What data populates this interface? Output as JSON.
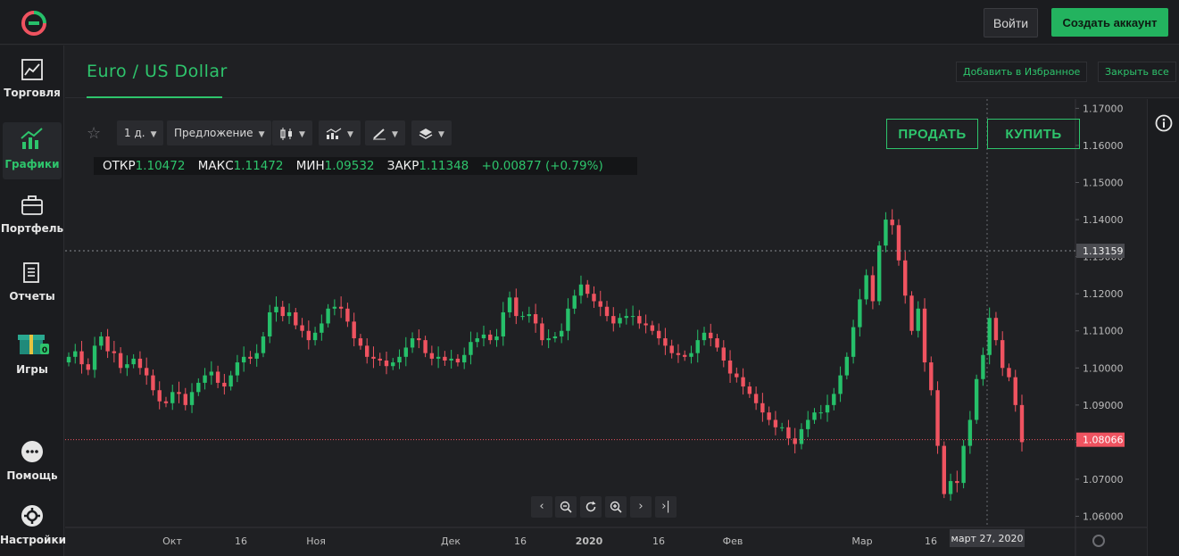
{
  "topbar": {
    "logo_icon": "brand-logo-icon",
    "login_label": "Войти",
    "signup_label": "Создать аккаунт"
  },
  "sidebar": {
    "items": [
      {
        "label": "Торговля",
        "icon": "chart-line-icon"
      },
      {
        "label": "Графики",
        "icon": "chart-bars-icon",
        "active": true
      },
      {
        "label": "Портфель",
        "icon": "briefcase-icon"
      },
      {
        "label": "Отчеты",
        "icon": "document-icon"
      },
      {
        "label": "Игры",
        "icon": "gift-icon"
      },
      {
        "label": "Помощь",
        "icon": "chat-icon"
      },
      {
        "label": "Настройки",
        "icon": "gear-icon"
      }
    ]
  },
  "header": {
    "asset_title": "Euro / US Dollar",
    "add_favorite_label": "Добавить в Избранное",
    "close_all_label": "Закрыть все"
  },
  "toolbar": {
    "interval_label": "1 д.",
    "price_type_label": "Предложение",
    "sell_label": "ПРОДАТЬ",
    "buy_label": "КУПИТЬ"
  },
  "ohlc": {
    "open_label": "ОТКР",
    "open_value": "1.10472",
    "high_label": "МАКС",
    "high_value": "1.11472",
    "low_label": "МИН",
    "low_value": "1.09532",
    "close_label": "ЗАКР",
    "close_value": "1.11348",
    "change": "+0.00877 (+0.79%)"
  },
  "colors": {
    "up": "#26c06a",
    "down": "#ef5360",
    "accent": "#2ec46c",
    "background": "#1f2023"
  },
  "chart_data": {
    "type": "candlestick",
    "symbol": "EUR/USD",
    "interval": "1 d",
    "ylim": [
      1.057,
      1.1725
    ],
    "y_ticks": [
      "1.17000",
      "1.16000",
      "1.15000",
      "1.14000",
      "1.13000",
      "1.12000",
      "1.11000",
      "1.10000",
      "1.09000",
      "1.08000",
      "1.07000",
      "1.06000"
    ],
    "x_ticks": [
      "Окт",
      "16",
      "Ноя",
      "Дек",
      "16",
      "2020",
      "16",
      "Фев",
      "Мар",
      "16"
    ],
    "crosshair_price": "1.13159",
    "current_price": "1.08066",
    "crosshair_date": "март 27, 2020",
    "closes": [
      1.103,
      1.1045,
      1.101,
      1.0995,
      1.106,
      1.1085,
      1.1045,
      1.104,
      1.1,
      1.101,
      1.1025,
      1.1,
      1.098,
      1.094,
      1.091,
      1.0905,
      1.0935,
      1.093,
      1.09,
      1.0935,
      1.096,
      1.098,
      1.099,
      1.096,
      1.095,
      1.098,
      1.1015,
      1.103,
      1.1025,
      1.104,
      1.1085,
      1.115,
      1.1165,
      1.114,
      1.115,
      1.1115,
      1.11,
      1.1075,
      1.1095,
      1.112,
      1.116,
      1.1165,
      1.116,
      1.1125,
      1.108,
      1.106,
      1.103,
      1.1025,
      1.102,
      1.1005,
      1.1015,
      1.103,
      1.1055,
      1.108,
      1.1075,
      1.104,
      1.1025,
      1.103,
      1.102,
      1.1025,
      1.1015,
      1.1035,
      1.107,
      1.108,
      1.109,
      1.1075,
      1.1085,
      1.115,
      1.119,
      1.114,
      1.114,
      1.1145,
      1.112,
      1.1075,
      1.108,
      1.1085,
      1.11,
      1.116,
      1.1195,
      1.1225,
      1.12,
      1.118,
      1.1165,
      1.114,
      1.112,
      1.1135,
      1.114,
      1.114,
      1.112,
      1.1115,
      1.11,
      1.108,
      1.106,
      1.104,
      1.1035,
      1.103,
      1.104,
      1.1075,
      1.1095,
      1.108,
      1.1055,
      1.102,
      1.0985,
      1.0975,
      1.095,
      1.093,
      1.0905,
      1.088,
      1.086,
      1.084,
      1.084,
      1.081,
      1.0795,
      1.0835,
      1.086,
      1.088,
      1.088,
      1.09,
      1.093,
      1.098,
      1.103,
      1.111,
      1.1185,
      1.125,
      1.118,
      1.133,
      1.14,
      1.1385,
      1.129,
      1.1195,
      1.11,
      1.116,
      1.1015,
      1.094,
      1.079,
      1.066,
      1.0695,
      1.069,
      1.079,
      1.086,
      1.097,
      1.1035,
      1.1135,
      1.1075,
      1.1,
      1.0975,
      1.09,
      1.08
    ]
  }
}
